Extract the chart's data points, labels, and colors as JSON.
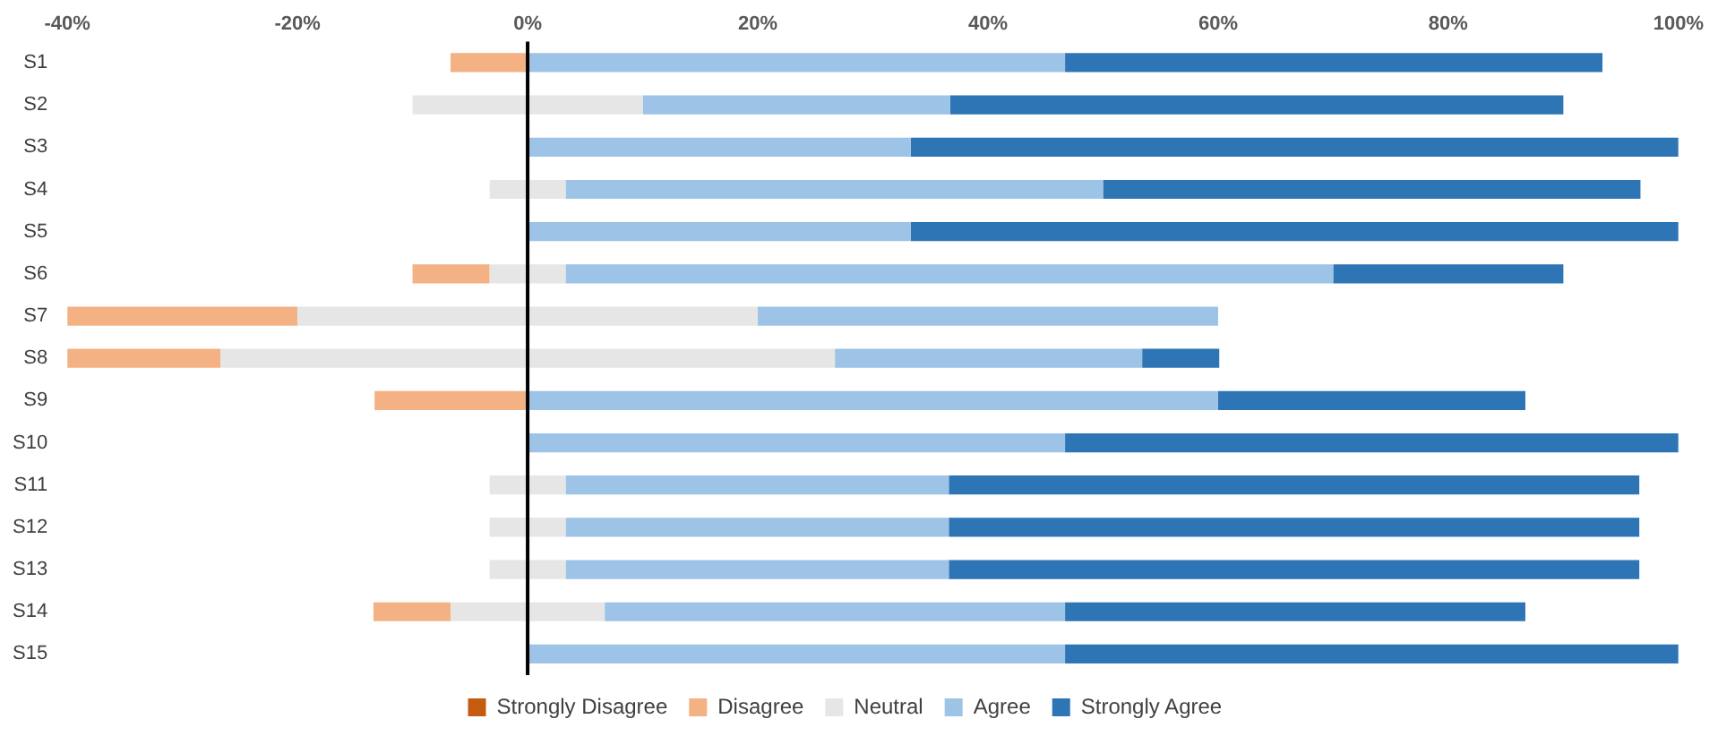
{
  "chart_data": {
    "type": "bar",
    "orientation": "horizontal",
    "stacked": true,
    "categories": [
      "S1",
      "S2",
      "S3",
      "S4",
      "S5",
      "S6",
      "S7",
      "S8",
      "S9",
      "S10",
      "S11",
      "S12",
      "S13",
      "S14",
      "S15"
    ],
    "series": [
      {
        "name": "Neutral",
        "color": "#e7e6e6",
        "values": [
          0,
          -10,
          0,
          -3.3,
          0,
          -3.3,
          -20,
          -26.7,
          0,
          0,
          -3.3,
          -3.3,
          -3.3,
          -6.7,
          0
        ]
      },
      {
        "name": "Disagree",
        "color": "#f4b183",
        "values": [
          -6.7,
          0,
          0,
          0,
          0,
          -6.7,
          -20,
          -13.3,
          -13.3,
          0,
          0,
          0,
          0,
          -6.7,
          0
        ]
      },
      {
        "name": "Strongly Disagree",
        "color": "#c55a11",
        "values": [
          0,
          0,
          0,
          0,
          0,
          0,
          0,
          0,
          0,
          0,
          0,
          0,
          0,
          0,
          0
        ]
      },
      {
        "color": "#e7e6e6",
        "values": [
          0,
          10,
          0,
          3.3,
          0,
          3.3,
          20,
          26.7,
          0,
          0,
          3.3,
          3.3,
          3.3,
          6.7,
          0
        ]
      },
      {
        "name": "Agree",
        "color": "#9dc3e6",
        "values": [
          46.7,
          26.7,
          33.3,
          46.7,
          33.3,
          66.7,
          40,
          26.7,
          60,
          46.7,
          33.3,
          33.3,
          33.3,
          40,
          46.7
        ]
      },
      {
        "name": "Strongly Agree",
        "color": "#2e75b6",
        "values": [
          46.7,
          53.3,
          66.7,
          46.7,
          66.7,
          20,
          0,
          6.7,
          26.7,
          53.3,
          60,
          60,
          60,
          40,
          53.3
        ]
      }
    ],
    "xlim": [
      -40,
      100
    ],
    "xticks": [
      {
        "value": -40,
        "label": "-40%"
      },
      {
        "value": -20,
        "label": "-20%"
      },
      {
        "value": 0,
        "label": "0%"
      },
      {
        "value": 20,
        "label": "20%"
      },
      {
        "value": 40,
        "label": "40%"
      },
      {
        "value": 60,
        "label": "60%"
      },
      {
        "value": 80,
        "label": "80%"
      },
      {
        "value": 100,
        "label": "100%"
      }
    ],
    "ref_lines": [
      {
        "axis": "x",
        "value": 0,
        "color": "#000000"
      }
    ],
    "grid": false,
    "legend": "bottom"
  }
}
